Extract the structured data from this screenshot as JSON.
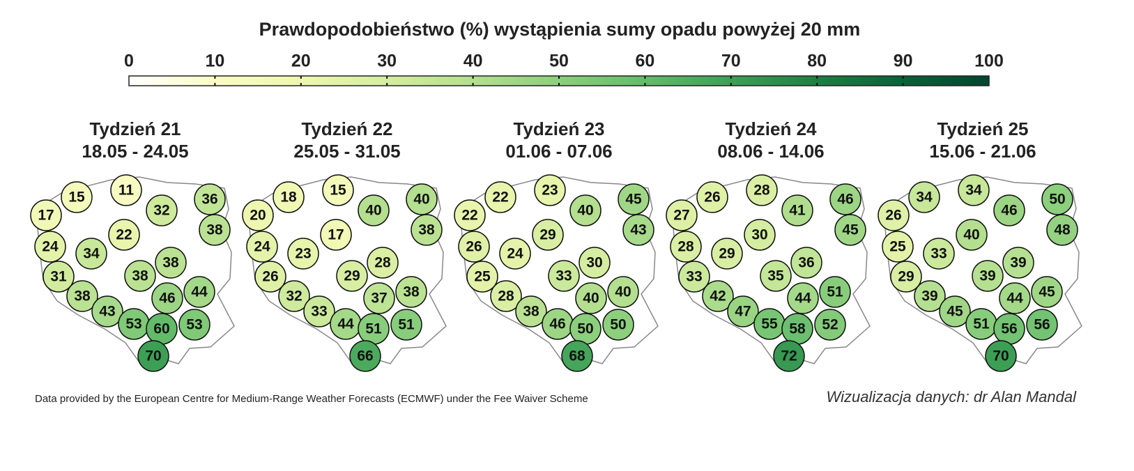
{
  "title": "Prawdopodobieństwo (%) wystąpienia sumy opadu powyżej 20 mm",
  "colorbar": {
    "lim": [
      0,
      100
    ],
    "ticks": [
      0,
      10,
      20,
      30,
      40,
      50,
      60,
      70,
      80,
      90,
      100
    ],
    "colors": [
      "#ffffff",
      "#f9fcc4",
      "#eef7b0",
      "#d5eda0",
      "#b3df8f",
      "#8ccf7d",
      "#63bb6a",
      "#3d9f56",
      "#1f7f43",
      "#0b6137",
      "#03452f"
    ]
  },
  "maps": [
    {
      "week": "Tydzień 21",
      "dates": "18.05 - 24.05",
      "values": [
        15,
        11,
        17,
        32,
        36,
        22,
        38,
        24,
        34,
        38,
        31,
        38,
        46,
        44,
        38,
        43,
        53,
        60,
        53,
        70
      ]
    },
    {
      "week": "Tydzień 22",
      "dates": "25.05 - 31.05",
      "values": [
        18,
        15,
        20,
        40,
        40,
        17,
        38,
        24,
        23,
        28,
        26,
        29,
        37,
        38,
        32,
        33,
        44,
        51,
        51,
        66
      ]
    },
    {
      "week": "Tydzień 23",
      "dates": "01.06 - 07.06",
      "values": [
        22,
        23,
        22,
        40,
        45,
        29,
        43,
        26,
        24,
        30,
        25,
        33,
        40,
        40,
        28,
        38,
        46,
        50,
        50,
        68
      ]
    },
    {
      "week": "Tydzień 24",
      "dates": "08.06 - 14.06",
      "values": [
        26,
        28,
        27,
        41,
        46,
        30,
        45,
        28,
        29,
        36,
        33,
        35,
        44,
        51,
        42,
        47,
        55,
        58,
        52,
        72
      ]
    },
    {
      "week": "Tydzień 25",
      "dates": "15.06 - 21.06",
      "values": [
        34,
        34,
        26,
        46,
        50,
        40,
        48,
        25,
        33,
        39,
        29,
        39,
        44,
        45,
        39,
        45,
        51,
        56,
        56,
        70
      ]
    }
  ],
  "footer_left": "Data provided by the European Centre for Medium-Range Weather Forecasts (ECMWF) under the Fee Waiver Scheme",
  "footer_right": "Wizualizacja danych: dr Alan Mandal"
}
